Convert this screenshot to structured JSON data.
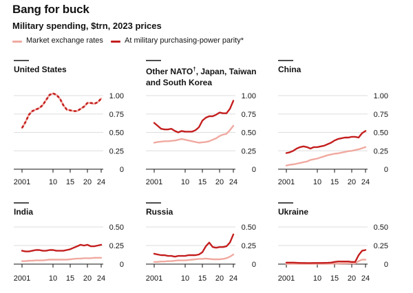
{
  "title": "Bang for buck",
  "subtitle": "Military spending, $trn, 2023 prices",
  "colors": {
    "market": "#f0a9a0",
    "ppp": "#c41e1e",
    "grid": "#dedede",
    "axis": "#121212",
    "text": "#121212"
  },
  "legend": [
    {
      "name": "Market exchange rates",
      "color": "#f0a9a0"
    },
    {
      "name": "At military purchasing-power parity*",
      "color": "#c41e1e"
    }
  ],
  "chart_data": [
    {
      "type": "line",
      "title": "United States",
      "ylim": [
        0,
        1.0
      ],
      "yticks": [
        0,
        0.25,
        0.5,
        0.75,
        1.0
      ],
      "ytick_labels": [
        "0",
        "0.25",
        "0.50",
        "0.75",
        "1.00"
      ],
      "xticks": [
        2001,
        2010,
        2015,
        2020,
        2024
      ],
      "xtick_labels": [
        "2001",
        "10",
        "15",
        "20",
        "24"
      ],
      "xlim": [
        2001,
        2024
      ],
      "combined": true,
      "series": [
        {
          "name": "Market exchange rates / At military purchasing-power parity* (identical)",
          "x": [
            2001,
            2002,
            2003,
            2004,
            2005,
            2006,
            2007,
            2008,
            2009,
            2010,
            2011,
            2012,
            2013,
            2014,
            2015,
            2016,
            2017,
            2018,
            2019,
            2020,
            2021,
            2022,
            2023,
            2024
          ],
          "values": [
            0.56,
            0.64,
            0.74,
            0.79,
            0.81,
            0.83,
            0.87,
            0.94,
            1.01,
            1.03,
            1.01,
            0.96,
            0.87,
            0.81,
            0.8,
            0.79,
            0.79,
            0.82,
            0.85,
            0.9,
            0.9,
            0.89,
            0.91,
            0.96
          ]
        }
      ]
    },
    {
      "type": "line",
      "title": "Other NATO",
      "title_sup": "†",
      "title_rest": ", Japan, Taiwan and South Korea",
      "ylim": [
        0,
        1.0
      ],
      "yticks": [
        0,
        0.25,
        0.5,
        0.75,
        1.0
      ],
      "ytick_labels": [
        "0",
        "0.25",
        "0.50",
        "0.75",
        "1.00"
      ],
      "xticks": [
        2001,
        2010,
        2015,
        2020,
        2024
      ],
      "xtick_labels": [
        "2001",
        "10",
        "15",
        "20",
        "24"
      ],
      "xlim": [
        2001,
        2024
      ],
      "series": [
        {
          "name": "Market exchange rates",
          "x": [
            2001,
            2002,
            2003,
            2004,
            2005,
            2006,
            2007,
            2008,
            2009,
            2010,
            2011,
            2012,
            2013,
            2014,
            2015,
            2016,
            2017,
            2018,
            2019,
            2020,
            2021,
            2022,
            2023,
            2024
          ],
          "values": [
            0.36,
            0.37,
            0.375,
            0.38,
            0.38,
            0.385,
            0.39,
            0.4,
            0.41,
            0.4,
            0.39,
            0.38,
            0.37,
            0.36,
            0.365,
            0.37,
            0.38,
            0.4,
            0.42,
            0.45,
            0.47,
            0.48,
            0.53,
            0.59
          ]
        },
        {
          "name": "At military purchasing-power parity*",
          "x": [
            2001,
            2002,
            2003,
            2004,
            2005,
            2006,
            2007,
            2008,
            2009,
            2010,
            2011,
            2012,
            2013,
            2014,
            2015,
            2016,
            2017,
            2018,
            2019,
            2020,
            2021,
            2022,
            2023,
            2024
          ],
          "values": [
            0.63,
            0.59,
            0.55,
            0.54,
            0.54,
            0.55,
            0.52,
            0.5,
            0.52,
            0.51,
            0.51,
            0.51,
            0.53,
            0.57,
            0.66,
            0.7,
            0.72,
            0.72,
            0.74,
            0.77,
            0.76,
            0.76,
            0.82,
            0.93
          ]
        }
      ]
    },
    {
      "type": "line",
      "title": "China",
      "ylim": [
        0,
        1.0
      ],
      "yticks": [
        0,
        0.25,
        0.5,
        0.75,
        1.0
      ],
      "ytick_labels": [
        "0",
        "0.25",
        "0.50",
        "0.75",
        "1.00"
      ],
      "xticks": [
        2001,
        2010,
        2015,
        2020,
        2024
      ],
      "xtick_labels": [
        "2001",
        "10",
        "15",
        "20",
        "24"
      ],
      "xlim": [
        2001,
        2024
      ],
      "series": [
        {
          "name": "Market exchange rates",
          "x": [
            2001,
            2002,
            2003,
            2004,
            2005,
            2006,
            2007,
            2008,
            2009,
            2010,
            2011,
            2012,
            2013,
            2014,
            2015,
            2016,
            2017,
            2018,
            2019,
            2020,
            2021,
            2022,
            2023,
            2024
          ],
          "values": [
            0.05,
            0.06,
            0.065,
            0.075,
            0.085,
            0.095,
            0.105,
            0.125,
            0.135,
            0.145,
            0.16,
            0.175,
            0.19,
            0.2,
            0.21,
            0.215,
            0.225,
            0.235,
            0.245,
            0.25,
            0.26,
            0.27,
            0.285,
            0.3
          ]
        },
        {
          "name": "At military purchasing-power parity*",
          "x": [
            2001,
            2002,
            2003,
            2004,
            2005,
            2006,
            2007,
            2008,
            2009,
            2010,
            2011,
            2012,
            2013,
            2014,
            2015,
            2016,
            2017,
            2018,
            2019,
            2020,
            2021,
            2022,
            2023,
            2024
          ],
          "values": [
            0.22,
            0.23,
            0.25,
            0.28,
            0.3,
            0.31,
            0.3,
            0.28,
            0.3,
            0.3,
            0.31,
            0.32,
            0.34,
            0.36,
            0.39,
            0.41,
            0.42,
            0.43,
            0.43,
            0.44,
            0.44,
            0.43,
            0.49,
            0.52
          ]
        }
      ]
    },
    {
      "type": "line",
      "title": "India",
      "ylim": [
        0,
        0.5
      ],
      "yticks": [
        0,
        0.25,
        0.5
      ],
      "ytick_labels": [
        "0",
        "0.25",
        "0.50"
      ],
      "xticks": [
        2001,
        2010,
        2015,
        2020,
        2024
      ],
      "xtick_labels": [
        "2001",
        "10",
        "15",
        "20",
        "24"
      ],
      "xlim": [
        2001,
        2024
      ],
      "series": [
        {
          "name": "Market exchange rates",
          "x": [
            2001,
            2002,
            2003,
            2004,
            2005,
            2006,
            2007,
            2008,
            2009,
            2010,
            2011,
            2012,
            2013,
            2014,
            2015,
            2016,
            2017,
            2018,
            2019,
            2020,
            2021,
            2022,
            2023,
            2024
          ],
          "values": [
            0.04,
            0.04,
            0.045,
            0.045,
            0.05,
            0.05,
            0.05,
            0.055,
            0.06,
            0.06,
            0.06,
            0.06,
            0.06,
            0.06,
            0.065,
            0.07,
            0.075,
            0.075,
            0.08,
            0.08,
            0.08,
            0.085,
            0.085,
            0.085
          ]
        },
        {
          "name": "At military purchasing-power parity*",
          "x": [
            2001,
            2002,
            2003,
            2004,
            2005,
            2006,
            2007,
            2008,
            2009,
            2010,
            2011,
            2012,
            2013,
            2014,
            2015,
            2016,
            2017,
            2018,
            2019,
            2020,
            2021,
            2022,
            2023,
            2024
          ],
          "values": [
            0.18,
            0.17,
            0.17,
            0.18,
            0.19,
            0.19,
            0.18,
            0.18,
            0.19,
            0.19,
            0.18,
            0.18,
            0.18,
            0.19,
            0.2,
            0.22,
            0.24,
            0.26,
            0.25,
            0.26,
            0.24,
            0.24,
            0.25,
            0.26
          ]
        }
      ]
    },
    {
      "type": "line",
      "title": "Russia",
      "ylim": [
        0,
        0.5
      ],
      "yticks": [
        0,
        0.25,
        0.5
      ],
      "ytick_labels": [
        "0",
        "0.25",
        "0.50"
      ],
      "xticks": [
        2001,
        2010,
        2015,
        2020,
        2024
      ],
      "xtick_labels": [
        "2001",
        "10",
        "15",
        "20",
        "24"
      ],
      "xlim": [
        2001,
        2024
      ],
      "series": [
        {
          "name": "Market exchange rates",
          "x": [
            2001,
            2002,
            2003,
            2004,
            2005,
            2006,
            2007,
            2008,
            2009,
            2010,
            2011,
            2012,
            2013,
            2014,
            2015,
            2016,
            2017,
            2018,
            2019,
            2020,
            2021,
            2022,
            2023,
            2024
          ],
          "values": [
            0.03,
            0.03,
            0.035,
            0.035,
            0.04,
            0.04,
            0.045,
            0.05,
            0.05,
            0.05,
            0.055,
            0.06,
            0.065,
            0.07,
            0.07,
            0.075,
            0.07,
            0.065,
            0.065,
            0.065,
            0.07,
            0.08,
            0.1,
            0.13
          ]
        },
        {
          "name": "At military purchasing-power parity*",
          "x": [
            2001,
            2002,
            2003,
            2004,
            2005,
            2006,
            2007,
            2008,
            2009,
            2010,
            2011,
            2012,
            2013,
            2014,
            2015,
            2016,
            2017,
            2018,
            2019,
            2020,
            2021,
            2022,
            2023,
            2024
          ],
          "values": [
            0.14,
            0.13,
            0.12,
            0.12,
            0.11,
            0.11,
            0.1,
            0.11,
            0.11,
            0.11,
            0.12,
            0.12,
            0.12,
            0.13,
            0.16,
            0.24,
            0.29,
            0.23,
            0.22,
            0.23,
            0.23,
            0.24,
            0.29,
            0.4
          ]
        }
      ]
    },
    {
      "type": "line",
      "title": "Ukraine",
      "ylim": [
        0,
        0.5
      ],
      "yticks": [
        0,
        0.25,
        0.5
      ],
      "ytick_labels": [
        "0",
        "0.25",
        "0.50"
      ],
      "xticks": [
        2001,
        2010,
        2015,
        2020,
        2024
      ],
      "xtick_labels": [
        "2001",
        "10",
        "15",
        "20",
        "24"
      ],
      "xlim": [
        2001,
        2024
      ],
      "series": [
        {
          "name": "Market exchange rates",
          "x": [
            2001,
            2002,
            2003,
            2004,
            2005,
            2006,
            2007,
            2008,
            2009,
            2010,
            2011,
            2012,
            2013,
            2014,
            2015,
            2016,
            2017,
            2018,
            2019,
            2020,
            2021,
            2022,
            2023,
            2024
          ],
          "values": [
            0.003,
            0.003,
            0.004,
            0.004,
            0.004,
            0.005,
            0.005,
            0.006,
            0.005,
            0.005,
            0.005,
            0.005,
            0.005,
            0.006,
            0.007,
            0.007,
            0.008,
            0.009,
            0.01,
            0.01,
            0.01,
            0.04,
            0.06,
            0.06
          ]
        },
        {
          "name": "At military purchasing-power parity*",
          "x": [
            2001,
            2002,
            2003,
            2004,
            2005,
            2006,
            2007,
            2008,
            2009,
            2010,
            2011,
            2012,
            2013,
            2014,
            2015,
            2016,
            2017,
            2018,
            2019,
            2020,
            2021,
            2022,
            2023,
            2024
          ],
          "values": [
            0.02,
            0.02,
            0.02,
            0.018,
            0.016,
            0.016,
            0.015,
            0.015,
            0.016,
            0.016,
            0.016,
            0.017,
            0.018,
            0.02,
            0.03,
            0.035,
            0.035,
            0.035,
            0.035,
            0.03,
            0.03,
            0.12,
            0.18,
            0.19
          ]
        }
      ]
    }
  ]
}
